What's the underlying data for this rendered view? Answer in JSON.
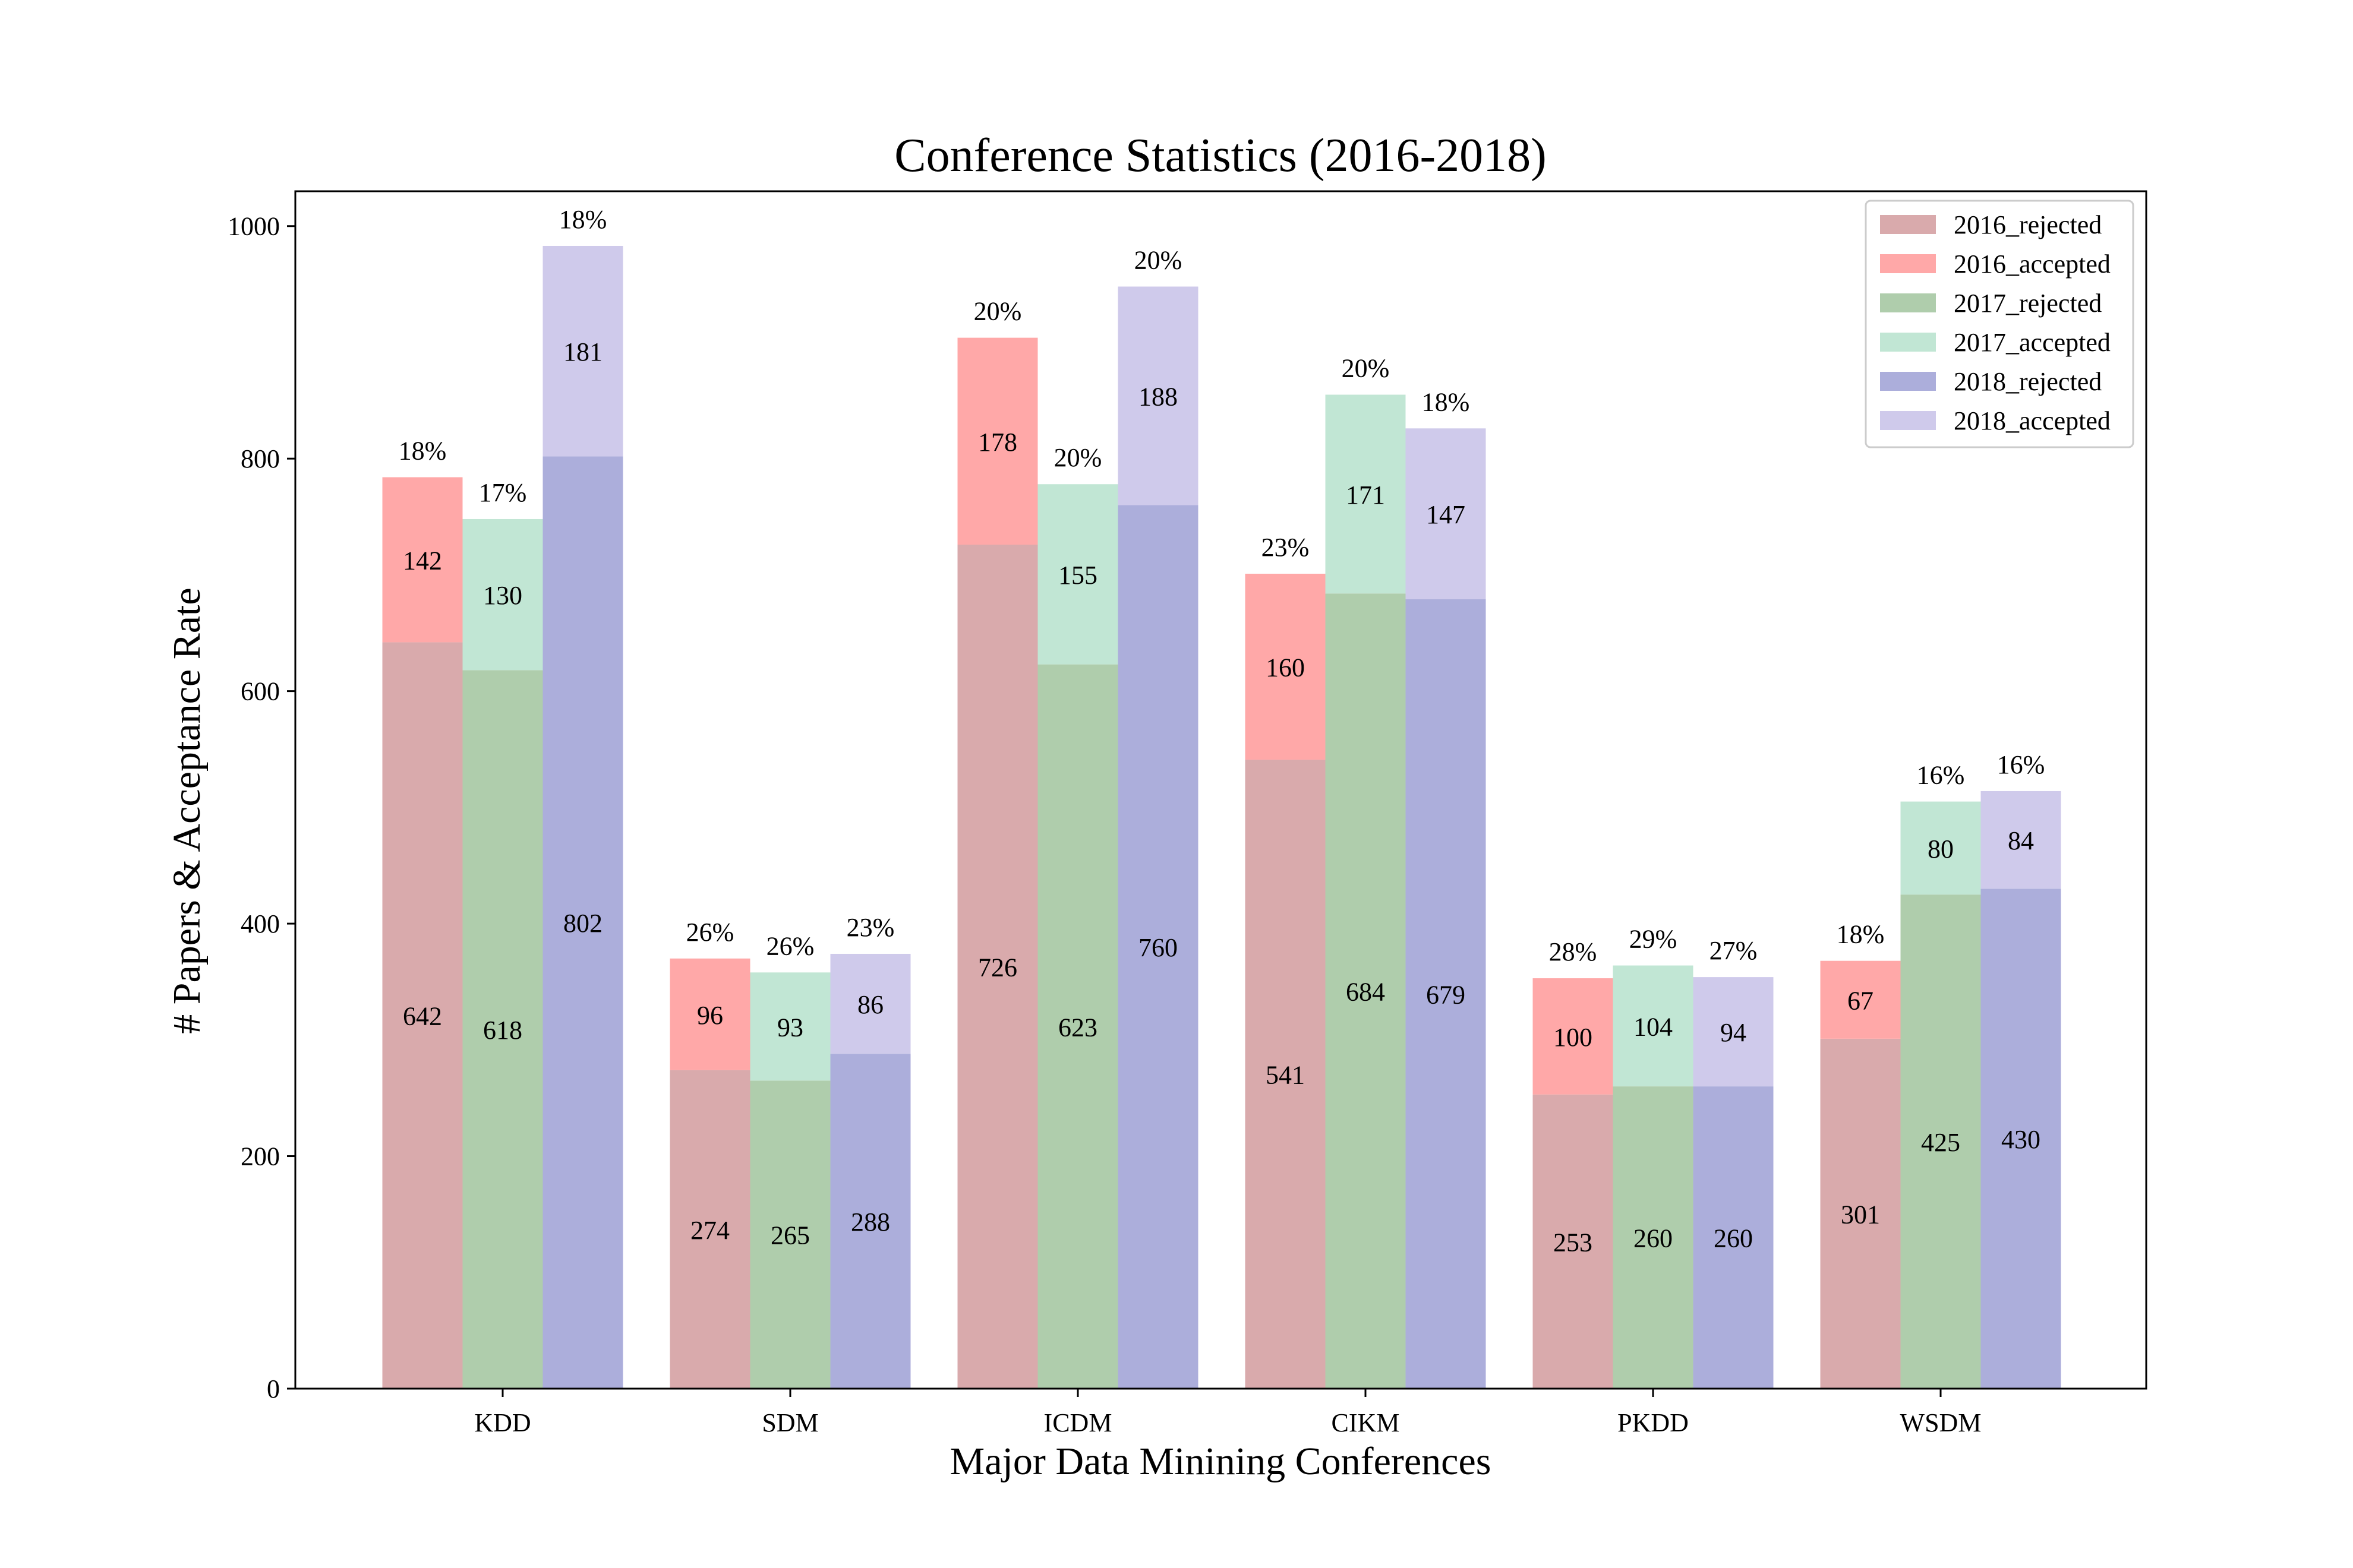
{
  "chart_data": {
    "type": "bar",
    "stacked": true,
    "title": "Conference Statistics (2016-2018)",
    "xlabel": "Major Data Minining Conferences",
    "ylabel": "# Papers & Acceptance Rate",
    "categories": [
      "KDD",
      "SDM",
      "ICDM",
      "CIKM",
      "PKDD",
      "WSDM"
    ],
    "ylim": [
      0,
      1030
    ],
    "yticks": [
      0,
      200,
      400,
      600,
      800,
      1000
    ],
    "grid": false,
    "legend_position": "top-right",
    "groups": [
      {
        "year": "2016",
        "rejected": [
          642,
          274,
          726,
          541,
          253,
          301
        ],
        "accepted": [
          142,
          96,
          178,
          160,
          100,
          67
        ],
        "rates": [
          "18%",
          "26%",
          "20%",
          "23%",
          "28%",
          "18%"
        ],
        "rejected_color": "#d9aaac",
        "accepted_color": "#ffa8a8"
      },
      {
        "year": "2017",
        "rejected": [
          618,
          265,
          623,
          684,
          260,
          425
        ],
        "accepted": [
          130,
          93,
          155,
          171,
          104,
          80
        ],
        "rates": [
          "17%",
          "26%",
          "20%",
          "20%",
          "29%",
          "16%"
        ],
        "rejected_color": "#afcdac",
        "accepted_color": "#c1e6d4"
      },
      {
        "year": "2018",
        "rejected": [
          802,
          288,
          760,
          679,
          260,
          430
        ],
        "accepted": [
          181,
          86,
          188,
          147,
          94,
          84
        ],
        "rates": [
          "18%",
          "23%",
          "20%",
          "18%",
          "27%",
          "16%"
        ],
        "rejected_color": "#acaedb",
        "accepted_color": "#cfcaeb"
      }
    ],
    "series": [
      {
        "name": "2016_rejected",
        "color": "#d9aaac"
      },
      {
        "name": "2016_accepted",
        "color": "#ffa8a8"
      },
      {
        "name": "2017_rejected",
        "color": "#afcdac"
      },
      {
        "name": "2017_accepted",
        "color": "#c1e6d4"
      },
      {
        "name": "2018_rejected",
        "color": "#acaedb"
      },
      {
        "name": "2018_accepted",
        "color": "#cfcaeb"
      }
    ]
  }
}
